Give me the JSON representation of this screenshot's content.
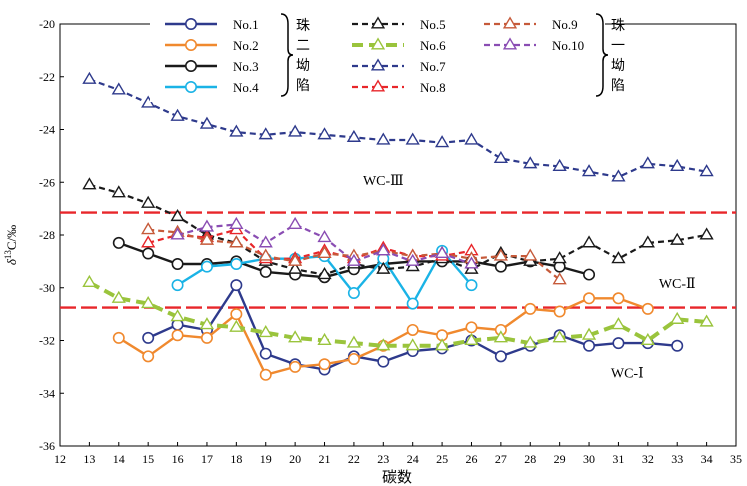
{
  "chart_data": {
    "type": "line",
    "xlabel": "碳数",
    "ylabel_main": "δ",
    "ylabel_sup": "13",
    "ylabel_rest": "C/‰",
    "xlim": [
      12,
      35
    ],
    "ylim": [
      -36,
      -20
    ],
    "xticks": [
      12,
      13,
      14,
      15,
      16,
      17,
      18,
      19,
      20,
      21,
      22,
      23,
      24,
      25,
      26,
      27,
      28,
      29,
      30,
      31,
      32,
      33,
      34,
      35
    ],
    "yticks": [
      -36,
      -34,
      -32,
      -30,
      -28,
      -26,
      -24,
      -22,
      -20
    ],
    "grid": false,
    "legend_position": "top-center",
    "group_labels": [
      {
        "text": [
          "珠",
          "二",
          "坳",
          "陷"
        ]
      },
      {
        "text": [
          "珠",
          "一",
          "坳",
          "陷"
        ]
      }
    ],
    "reference_lines": [
      {
        "y": -27.15,
        "color": "#e8262a"
      },
      {
        "y": -30.75,
        "color": "#e8262a"
      }
    ],
    "annotations": [
      {
        "text": "WC-Ⅲ",
        "x": 23.0,
        "y": -26.1
      },
      {
        "text": "WC-Ⅱ",
        "x": 33.0,
        "y": -30.0
      },
      {
        "text": "WC-Ⅰ",
        "x": 31.3,
        "y": -33.4
      }
    ],
    "series": [
      {
        "name": "No.1",
        "color": "#2e3a8c",
        "dash": "solid",
        "marker": "circle",
        "x": [
          15,
          16,
          17,
          18,
          19,
          20,
          21,
          22,
          23,
          24,
          25,
          26,
          27,
          28,
          29,
          30,
          31,
          32,
          33
        ],
        "y": [
          -31.9,
          -31.4,
          -31.6,
          -29.9,
          -32.5,
          -32.9,
          -33.1,
          -32.6,
          -32.8,
          -32.4,
          -32.3,
          -32.0,
          -32.6,
          -32.2,
          -31.8,
          -32.2,
          -32.1,
          -32.1,
          -32.2
        ]
      },
      {
        "name": "No.2",
        "color": "#f0892e",
        "dash": "solid",
        "marker": "circle",
        "x": [
          14,
          15,
          16,
          17,
          18,
          19,
          20,
          21,
          22,
          23,
          24,
          25,
          26,
          27,
          28,
          29,
          30,
          31,
          32
        ],
        "y": [
          -31.9,
          -32.6,
          -31.8,
          -31.9,
          -31.0,
          -33.3,
          -33.0,
          -32.9,
          -32.7,
          -32.2,
          -31.6,
          -31.8,
          -31.5,
          -31.6,
          -30.8,
          -30.9,
          -30.4,
          -30.4,
          -30.8
        ]
      },
      {
        "name": "No.3",
        "color": "#1a1a1a",
        "dash": "solid",
        "marker": "circle",
        "x": [
          14,
          15,
          16,
          17,
          18,
          19,
          20,
          21,
          22,
          23,
          24,
          25,
          26,
          27,
          28,
          29,
          30
        ],
        "y": [
          -28.3,
          -28.7,
          -29.1,
          -29.1,
          -29.0,
          -29.4,
          -29.5,
          -29.6,
          -29.3,
          -29.1,
          -29.0,
          -29.0,
          -29.0,
          -29.2,
          -29.0,
          -29.2,
          -29.5
        ]
      },
      {
        "name": "No.4",
        "color": "#1ab3e6",
        "dash": "solid",
        "marker": "circle",
        "x": [
          16,
          17,
          18,
          19,
          20,
          21,
          22,
          23,
          24,
          25,
          26
        ],
        "y": [
          -29.9,
          -29.2,
          -29.1,
          -28.9,
          -28.9,
          -28.8,
          -30.2,
          -28.9,
          -30.6,
          -28.6,
          -29.9
        ]
      },
      {
        "name": "No.5",
        "color": "#1a1a1a",
        "dash": "dashed",
        "marker": "triangle",
        "x": [
          13,
          14,
          15,
          16,
          17,
          18,
          19,
          20,
          21,
          22,
          23,
          24,
          25,
          26,
          27,
          28,
          29,
          30,
          31,
          32,
          33,
          34
        ],
        "y": [
          -26.1,
          -26.4,
          -26.8,
          -27.3,
          -28.0,
          -28.3,
          -29.0,
          -29.3,
          -29.5,
          -29.1,
          -29.3,
          -29.2,
          -28.9,
          -29.3,
          -28.7,
          -29.0,
          -28.9,
          -28.3,
          -28.9,
          -28.3,
          -28.2,
          -28.0
        ]
      },
      {
        "name": "No.6",
        "color": "#9ac43c",
        "dash": "heavy-dashed",
        "marker": "triangle",
        "x": [
          13,
          14,
          15,
          16,
          17,
          18,
          19,
          20,
          21,
          22,
          23,
          24,
          25,
          26,
          27,
          28,
          29,
          30,
          31,
          32,
          33,
          34
        ],
        "y": [
          -29.8,
          -30.4,
          -30.6,
          -31.1,
          -31.4,
          -31.5,
          -31.7,
          -31.9,
          -32.0,
          -32.1,
          -32.2,
          -32.2,
          -32.2,
          -32.0,
          -31.9,
          -32.1,
          -31.9,
          -31.8,
          -31.4,
          -32.0,
          -31.2,
          -31.3
        ]
      },
      {
        "name": "No.7",
        "color": "#2e3a8c",
        "dash": "dashed",
        "marker": "triangle",
        "x": [
          13,
          14,
          15,
          16,
          17,
          18,
          19,
          20,
          21,
          22,
          23,
          24,
          25,
          26,
          27,
          28,
          29,
          30,
          31,
          32,
          33,
          34
        ],
        "y": [
          -22.1,
          -22.5,
          -23.0,
          -23.5,
          -23.8,
          -24.1,
          -24.2,
          -24.1,
          -24.2,
          -24.3,
          -24.4,
          -24.4,
          -24.5,
          -24.4,
          -25.1,
          -25.3,
          -25.4,
          -25.6,
          -25.8,
          -25.3,
          -25.4,
          -25.6
        ]
      },
      {
        "name": "No.8",
        "color": "#e8262a",
        "dash": "dashed",
        "marker": "triangle",
        "x": [
          15,
          16,
          17,
          18,
          19,
          20,
          21,
          22,
          23,
          24,
          25,
          26
        ],
        "y": [
          -28.3,
          -28.0,
          -28.1,
          -27.8,
          -28.9,
          -28.9,
          -28.6,
          -28.9,
          -28.5,
          -28.8,
          -28.8,
          -28.6
        ]
      },
      {
        "name": "No.9",
        "color": "#c65a3a",
        "dash": "dashed",
        "marker": "triangle",
        "x": [
          15,
          16,
          17,
          18,
          19,
          20,
          21,
          22,
          23,
          24,
          25,
          26,
          27,
          28,
          29
        ],
        "y": [
          -27.8,
          -27.9,
          -28.2,
          -28.3,
          -28.8,
          -29.0,
          -28.7,
          -28.8,
          -28.6,
          -28.8,
          -28.7,
          -28.9,
          -28.8,
          -28.8,
          -29.7
        ]
      },
      {
        "name": "No.10",
        "color": "#8a4db3",
        "dash": "dashed",
        "marker": "triangle",
        "x": [
          16,
          17,
          18,
          19,
          20,
          21,
          22,
          23,
          24,
          25,
          26
        ],
        "y": [
          -28.0,
          -27.7,
          -27.6,
          -28.3,
          -27.6,
          -28.1,
          -29.0,
          -28.6,
          -29.0,
          -28.7,
          -29.1
        ]
      }
    ]
  }
}
